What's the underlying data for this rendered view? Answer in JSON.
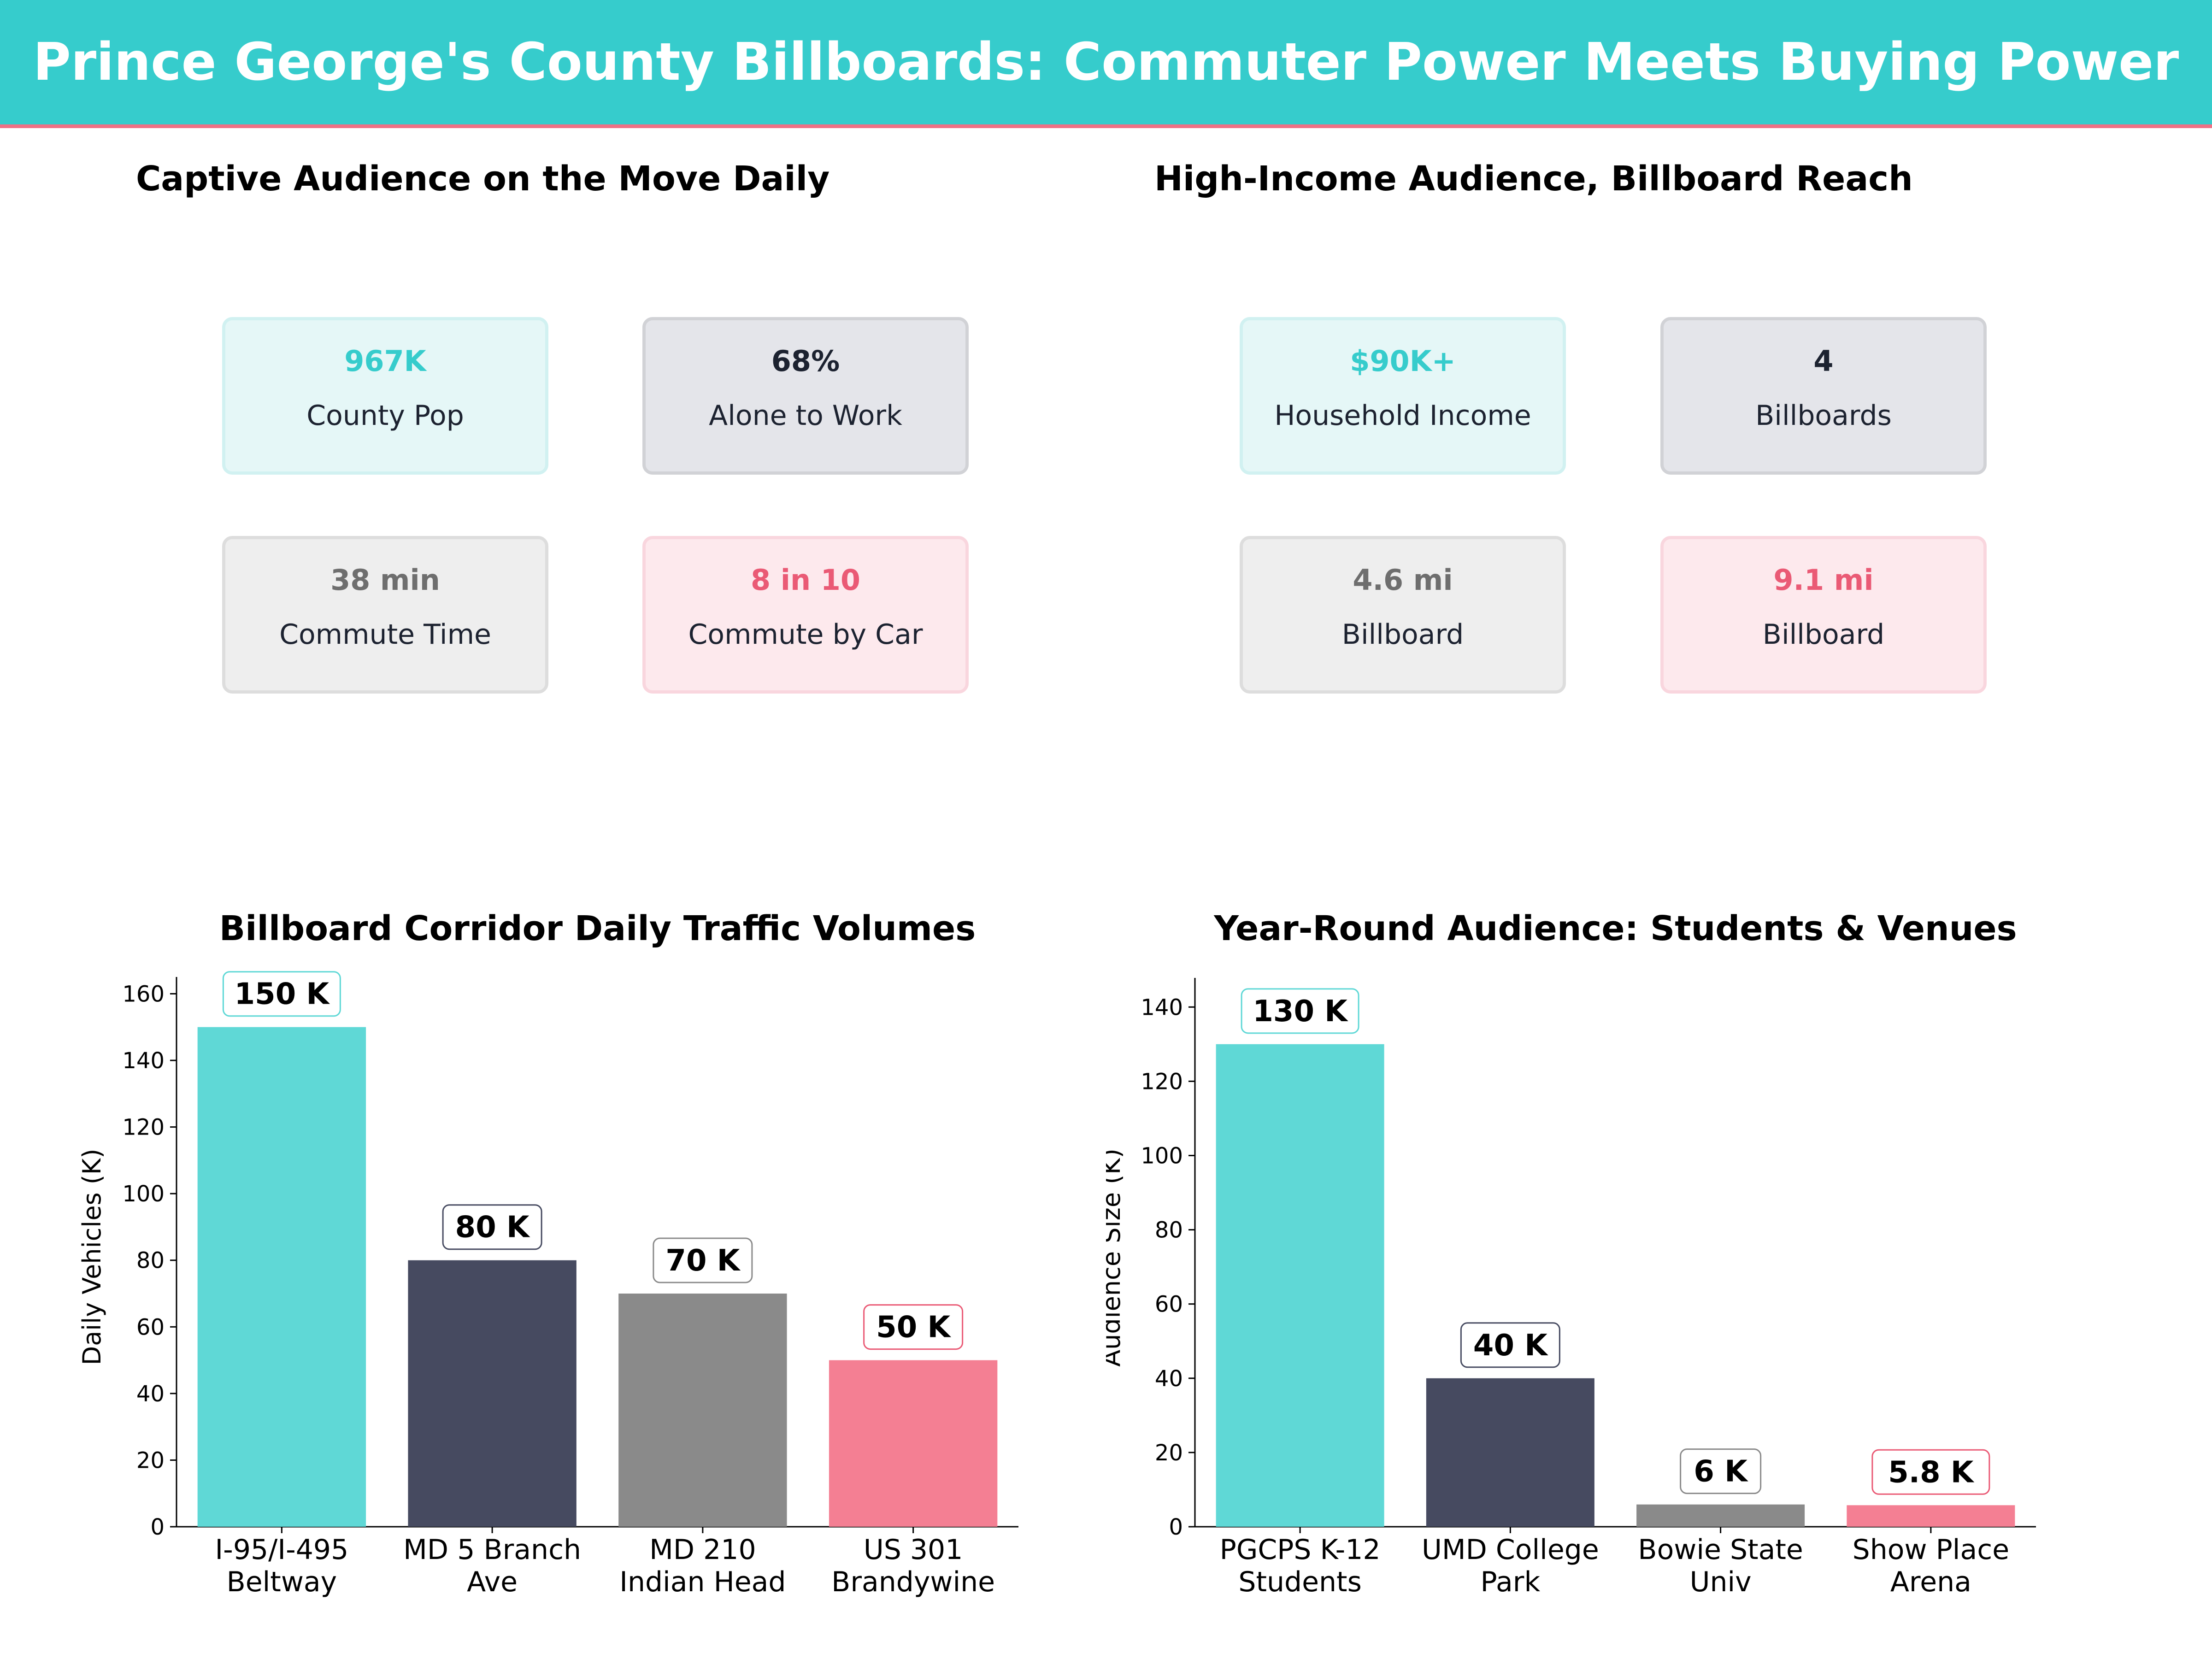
{
  "header": {
    "title": "Prince George's County Billboards: Commuter Power Meets Buying Power"
  },
  "panels": {
    "commuter": {
      "title": "Captive Audience on the Move Daily",
      "cards": [
        {
          "value": "967K",
          "label": "County Pop",
          "color": "#36cccc"
        },
        {
          "value": "68%",
          "label": "Alone to Work",
          "color": "#1c2230"
        },
        {
          "value": "38 min",
          "label": "Commute Time",
          "color": "#6e6e6e"
        },
        {
          "value": "8 in 10",
          "label": "Commute by Car",
          "color": "#ea5a75"
        }
      ]
    },
    "income": {
      "title": "High-Income Audience, Billboard Reach",
      "cards": [
        {
          "value": "$90K+",
          "label": "Household Income",
          "color": "#36cccc"
        },
        {
          "value": "4",
          "label": "Billboards",
          "color": "#1c2230"
        },
        {
          "value": "4.6 mi",
          "label": "Billboard",
          "color": "#6e6e6e"
        },
        {
          "value": "9.1 mi",
          "label": "Billboard",
          "color": "#ea5a75"
        }
      ]
    }
  },
  "chart_data": [
    {
      "type": "bar",
      "title": "Billboard Corridor Daily Traffic Volumes",
      "ylabel": "Daily Vehicles (K)",
      "xlabel": "",
      "categories": [
        [
          "I-95/I-495",
          "Beltway"
        ],
        [
          "MD 5 Branch",
          "Ave"
        ],
        [
          "MD 210",
          "Indian Head"
        ],
        [
          "US 301",
          "Brandywine"
        ]
      ],
      "values": [
        150,
        80,
        70,
        50
      ],
      "data_labels": [
        "150 K",
        "80 K",
        "70 K",
        "50 K"
      ],
      "ylim": [
        0,
        162
      ],
      "yticks": [
        0,
        20,
        40,
        60,
        80,
        100,
        120,
        140,
        160
      ],
      "colors": [
        "#5fd8d6",
        "#464a60",
        "#8a8a8a",
        "#f47f93"
      ],
      "label_border_colors": [
        "#5fd8d6",
        "#464a60",
        "#8a8a8a",
        "#ea5a75"
      ],
      "grid": false
    },
    {
      "type": "bar",
      "title": "Year-Round Audience: Students & Venues",
      "ylabel": "Audience Size (K)",
      "xlabel": "",
      "categories": [
        [
          "PGCPS K-12",
          "Students"
        ],
        [
          "UMD College",
          "Park"
        ],
        [
          "Bowie State",
          "Univ"
        ],
        [
          "Show Place",
          "Arena"
        ]
      ],
      "values": [
        130,
        40,
        6,
        5.8
      ],
      "data_labels": [
        "130 K",
        "40 K",
        "6 K",
        "5.8 K"
      ],
      "ylim": [
        0,
        145
      ],
      "yticks": [
        0,
        20,
        40,
        60,
        80,
        100,
        120,
        140
      ],
      "colors": [
        "#5fd8d6",
        "#464a60",
        "#8a8a8a",
        "#f47f93"
      ],
      "label_border_colors": [
        "#5fd8d6",
        "#464a60",
        "#8a8a8a",
        "#ea5a75"
      ],
      "grid": false
    }
  ]
}
